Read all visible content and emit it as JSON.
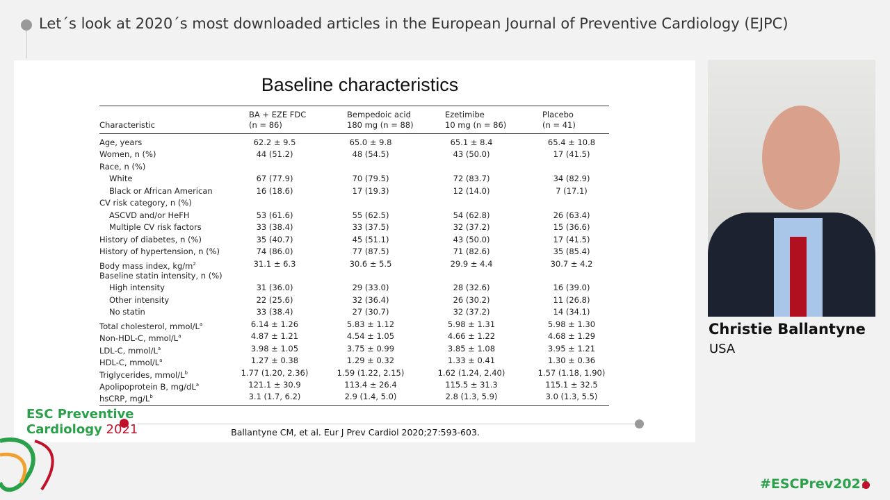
{
  "header": {
    "title": "Let´s look at 2020´s most downloaded articles in the European Journal of Preventive Cardiology (EJPC)"
  },
  "slide": {
    "title": "Baseline characteristics",
    "table": {
      "columns": [
        [
          "Characteristic"
        ],
        [
          "BA + EZE FDC",
          "(n = 86)"
        ],
        [
          "Bempedoic acid",
          "180 mg (n = 88)"
        ],
        [
          "Ezetimibe",
          "10 mg (n = 86)"
        ],
        [
          "Placebo",
          "(n = 41)"
        ]
      ],
      "rows": [
        {
          "label": "Age, years",
          "values": [
            "62.2 ± 9.5",
            "65.0 ± 9.8",
            "65.1 ± 8.4",
            "65.4 ± 10.8"
          ]
        },
        {
          "label": "Women, n (%)",
          "values": [
            "44 (51.2)",
            "48 (54.5)",
            "43 (50.0)",
            "17 (41.5)"
          ]
        },
        {
          "label": "Race, n (%)",
          "rows": [
            {
              "label": "White",
              "values": [
                "67 (77.9)",
                "70 (79.5)",
                "72 (83.7)",
                "34 (82.9)"
              ]
            },
            {
              "label": "Black or African American",
              "values": [
                "16 (18.6)",
                "17 (19.3)",
                "12 (14.0)",
                "7 (17.1)"
              ]
            }
          ]
        },
        {
          "label": "CV risk category, n (%)",
          "rows": [
            {
              "label": "ASCVD and/or HeFH",
              "values": [
                "53 (61.6)",
                "55 (62.5)",
                "54 (62.8)",
                "26 (63.4)"
              ]
            },
            {
              "label": "Multiple CV risk factors",
              "values": [
                "33 (38.4)",
                "33 (37.5)",
                "32 (37.2)",
                "15 (36.6)"
              ]
            }
          ]
        },
        {
          "label": "History of diabetes, n (%)",
          "values": [
            "35 (40.7)",
            "45 (51.1)",
            "43 (50.0)",
            "17 (41.5)"
          ]
        },
        {
          "label": "History of hypertension, n (%)",
          "values": [
            "74 (86.0)",
            "77 (87.5)",
            "71 (82.6)",
            "35 (85.4)"
          ]
        },
        {
          "label": "Body mass index, kg/m",
          "sup": "2",
          "values": [
            "31.1 ± 6.3",
            "30.6 ± 5.5",
            "29.9 ± 4.4",
            "30.7 ± 4.2"
          ]
        },
        {
          "label": "Baseline statin intensity, n (%)",
          "rows": [
            {
              "label": "High intensity",
              "values": [
                "31 (36.0)",
                "29 (33.0)",
                "28 (32.6)",
                "16 (39.0)"
              ]
            },
            {
              "label": "Other intensity",
              "values": [
                "22 (25.6)",
                "32 (36.4)",
                "26 (30.2)",
                "11 (26.8)"
              ]
            },
            {
              "label": "No statin",
              "values": [
                "33 (38.4)",
                "27 (30.7)",
                "32 (37.2)",
                "14 (34.1)"
              ]
            }
          ]
        },
        {
          "label": "Total cholesterol, mmol/L",
          "sup": "a",
          "values": [
            "6.14 ± 1.26",
            "5.83 ± 1.12",
            "5.98 ± 1.31",
            "5.98 ± 1.30"
          ]
        },
        {
          "label": "Non-HDL-C, mmol/L",
          "sup": "a",
          "values": [
            "4.87 ± 1.21",
            "4.54 ± 1.05",
            "4.66 ± 1.22",
            "4.68 ± 1.29"
          ]
        },
        {
          "label": "LDL-C, mmol/L",
          "sup": "a",
          "values": [
            "3.98 ± 1.05",
            "3.75 ± 0.99",
            "3.85 ± 1.08",
            "3.95 ± 1.21"
          ]
        },
        {
          "label": "HDL-C, mmol/L",
          "sup": "a",
          "values": [
            "1.27 ± 0.38",
            "1.29 ± 0.32",
            "1.33 ± 0.41",
            "1.30 ± 0.36"
          ]
        },
        {
          "label": "Triglycerides, mmol/L",
          "sup": "b",
          "values": [
            "1.77 (1.20, 2.36)",
            "1.59 (1.22, 2.15)",
            "1.62 (1.24, 2.40)",
            "1.57 (1.18, 1.90)"
          ]
        },
        {
          "label": "Apolipoprotein B, mg/dL",
          "sup": "a",
          "values": [
            "121.1 ± 30.9",
            "113.4 ± 26.4",
            "115.5 ± 31.3",
            "115.1 ± 32.5"
          ]
        },
        {
          "label": "hsCRP, mg/L",
          "sup": "b",
          "values": [
            "3.1 (1.7, 6.2)",
            "2.9 (1.4, 5.0)",
            "2.8 (1.3, 5.9)",
            "3.0 (1.3, 5.5)"
          ]
        }
      ]
    },
    "citation": "Ballantyne CM, et al. Eur J Prev Cardiol 2020;27:593-603."
  },
  "speaker": {
    "name": "Christie Ballantyne",
    "country": "USA"
  },
  "brand": {
    "line1": "ESC Preventive",
    "line2": "Cardiology",
    "year": "2021"
  },
  "hashtag": "#ESCPrev2021"
}
